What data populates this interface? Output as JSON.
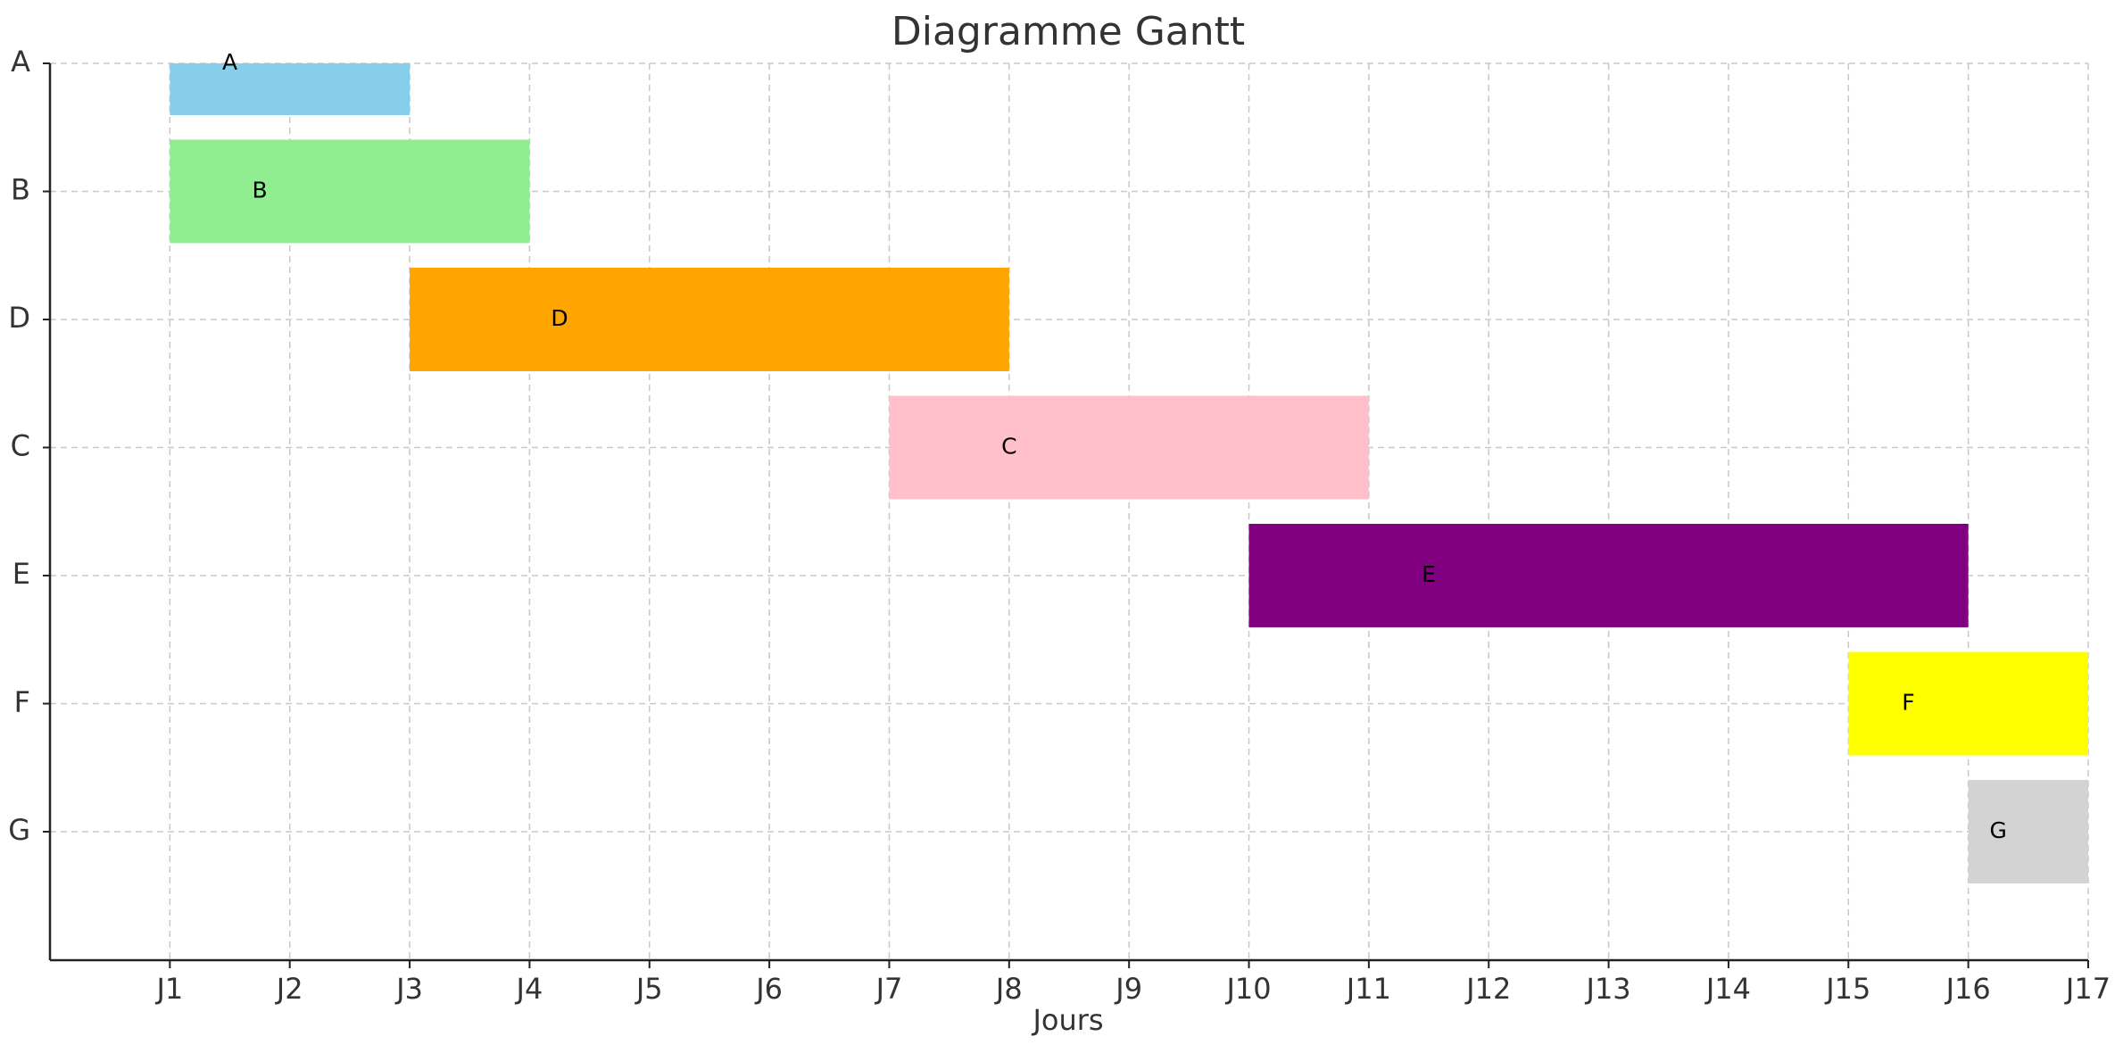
{
  "chart_data": {
    "type": "gantt",
    "title": "Diagramme Gantt",
    "xlabel": "Jours",
    "ylabel": "",
    "x_categories": [
      "J1",
      "J2",
      "J3",
      "J4",
      "J5",
      "J6",
      "J7",
      "J8",
      "J9",
      "J10",
      "J11",
      "J12",
      "J13",
      "J14",
      "J15",
      "J16",
      "J17"
    ],
    "xlim": [
      0,
      17
    ],
    "grid": true,
    "tasks": [
      {
        "name": "A",
        "start": "J1",
        "end": "J3",
        "color": "#87CEEB"
      },
      {
        "name": "B",
        "start": "J1",
        "end": "J4",
        "color": "#90EE90"
      },
      {
        "name": "D",
        "start": "J3",
        "end": "J8",
        "color": "#FFA500"
      },
      {
        "name": "C",
        "start": "J7",
        "end": "J11",
        "color": "#FFC0CB"
      },
      {
        "name": "E",
        "start": "J10",
        "end": "J16",
        "color": "#800080"
      },
      {
        "name": "F",
        "start": "J15",
        "end": "J17",
        "color": "#FFFF00"
      },
      {
        "name": "G",
        "start": "J16",
        "end": "J17",
        "color": "#D3D3D3"
      }
    ]
  }
}
